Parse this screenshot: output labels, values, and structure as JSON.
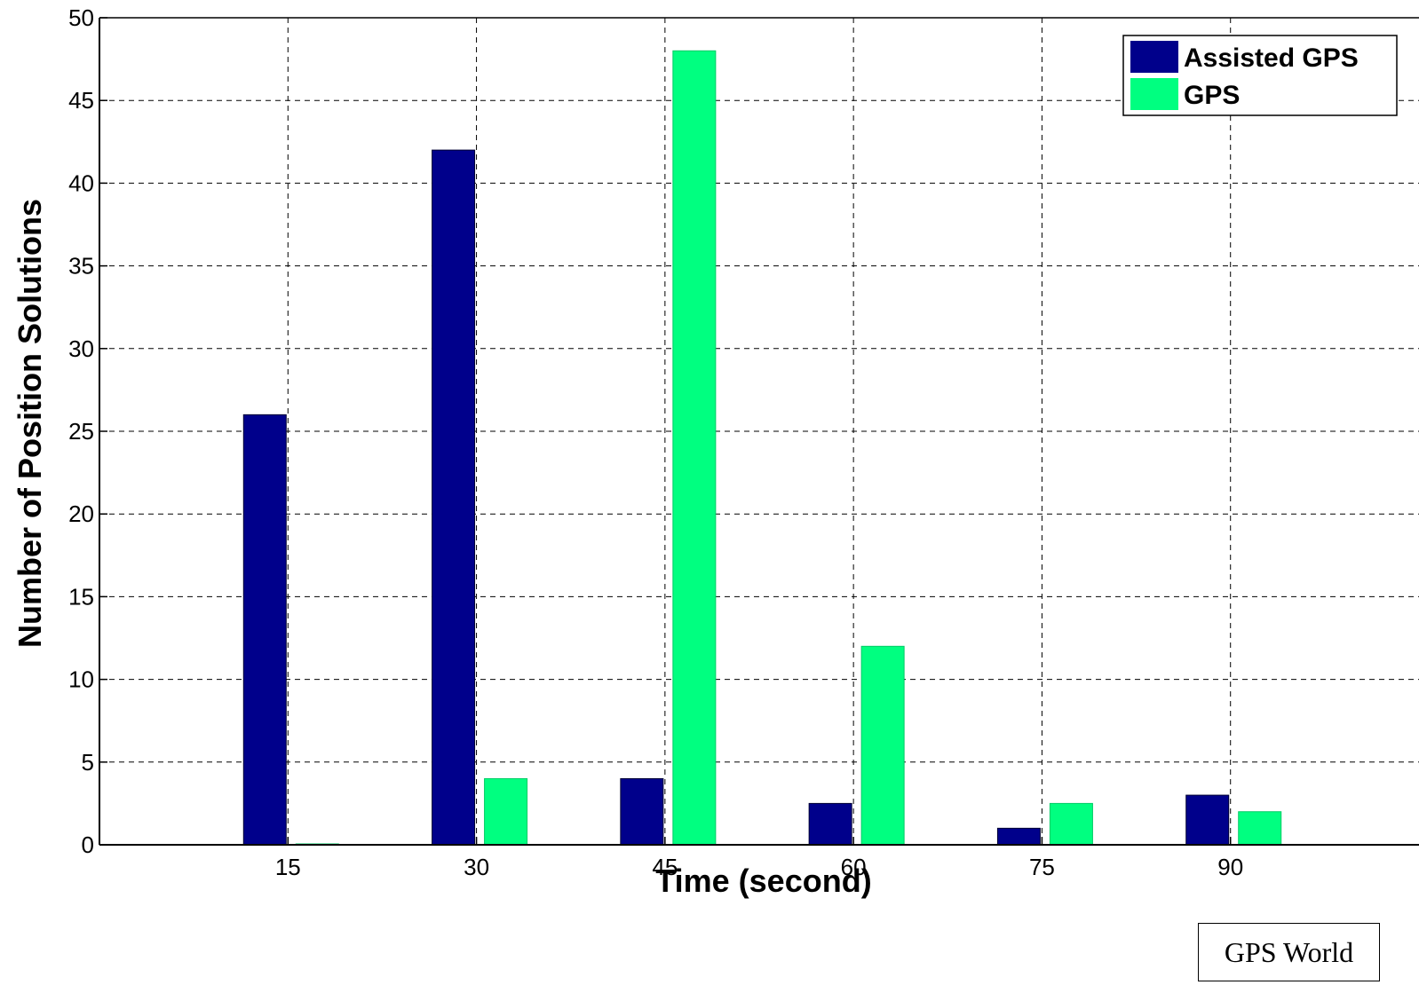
{
  "chart_data": {
    "type": "bar",
    "categories": [
      "15",
      "30",
      "45",
      "60",
      "75",
      "90"
    ],
    "series": [
      {
        "name": "Assisted GPS",
        "color": "#00008B",
        "values": [
          26,
          42,
          4,
          2.5,
          1,
          3
        ]
      },
      {
        "name": "GPS",
        "color": "#00FF80",
        "values": [
          0,
          4,
          48,
          12,
          2.5,
          2
        ]
      }
    ],
    "xlabel": "Time (second)",
    "ylabel": "Number of Position Solutions",
    "xlim": [
      0,
      105
    ],
    "ylim": [
      0,
      50
    ],
    "yticks": [
      0,
      5,
      10,
      15,
      20,
      25,
      30,
      35,
      40,
      45,
      50
    ],
    "grid": true,
    "legend_position": "top-right"
  },
  "credit": "GPS World"
}
